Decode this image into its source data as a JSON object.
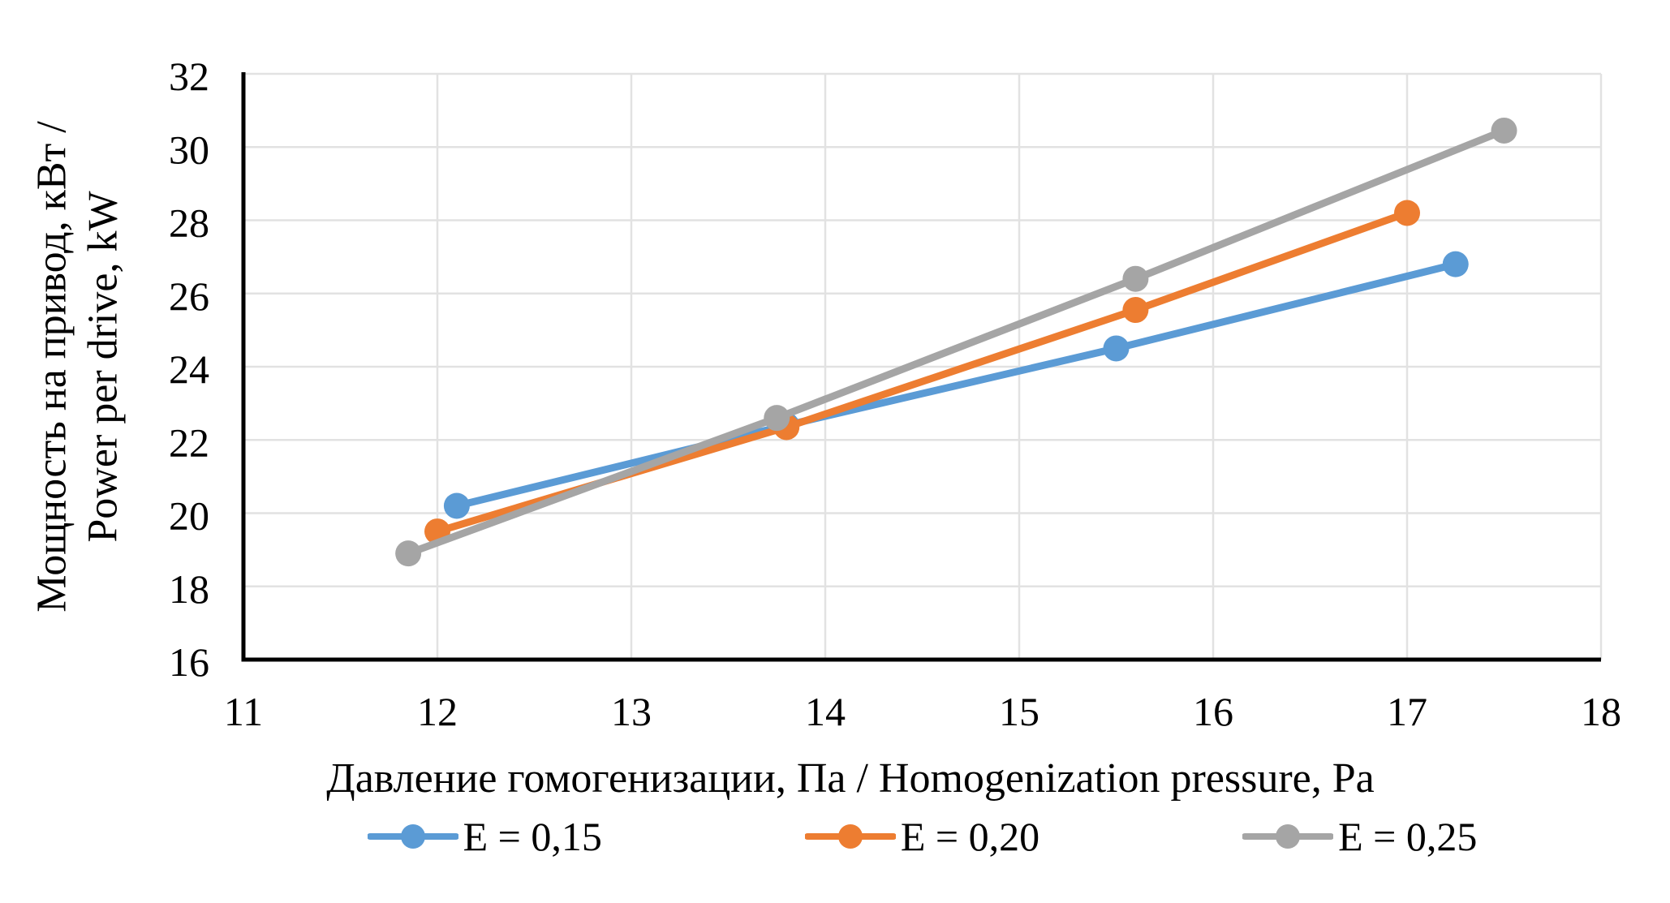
{
  "chart_data": {
    "type": "line",
    "title": "",
    "xlabel": "Давление гомогенизации, Па / Homogenization pressure, Pa",
    "ylabel_line1": "Мощность на привод, кВт /",
    "ylabel_line2": "Power per drive, kW",
    "xlim": [
      11,
      18
    ],
    "ylim": [
      16,
      32
    ],
    "x_ticks": [
      11,
      12,
      13,
      14,
      15,
      16,
      17,
      18
    ],
    "y_ticks": [
      16,
      18,
      20,
      22,
      24,
      26,
      28,
      30,
      32
    ],
    "grid": true,
    "legend_position": "bottom",
    "series": [
      {
        "name": "E = 0,15",
        "color": "#5B9BD5",
        "points": [
          [
            12.1,
            20.2
          ],
          [
            13.8,
            22.4
          ],
          [
            15.5,
            24.5
          ],
          [
            17.25,
            26.8
          ]
        ]
      },
      {
        "name": "E = 0,20",
        "color": "#ED7D31",
        "points": [
          [
            12.0,
            19.5
          ],
          [
            13.8,
            22.35
          ],
          [
            15.6,
            25.55
          ],
          [
            17.0,
            28.2
          ]
        ]
      },
      {
        "name": "E = 0,25",
        "color": "#A5A5A5",
        "points": [
          [
            11.85,
            18.9
          ],
          [
            13.75,
            22.6
          ],
          [
            15.6,
            26.4
          ],
          [
            17.5,
            30.45
          ]
        ]
      }
    ]
  },
  "colors": {
    "axis": "#000000",
    "gridline": "#E2E2E2",
    "text": "#000000",
    "background": "#FFFFFF"
  }
}
